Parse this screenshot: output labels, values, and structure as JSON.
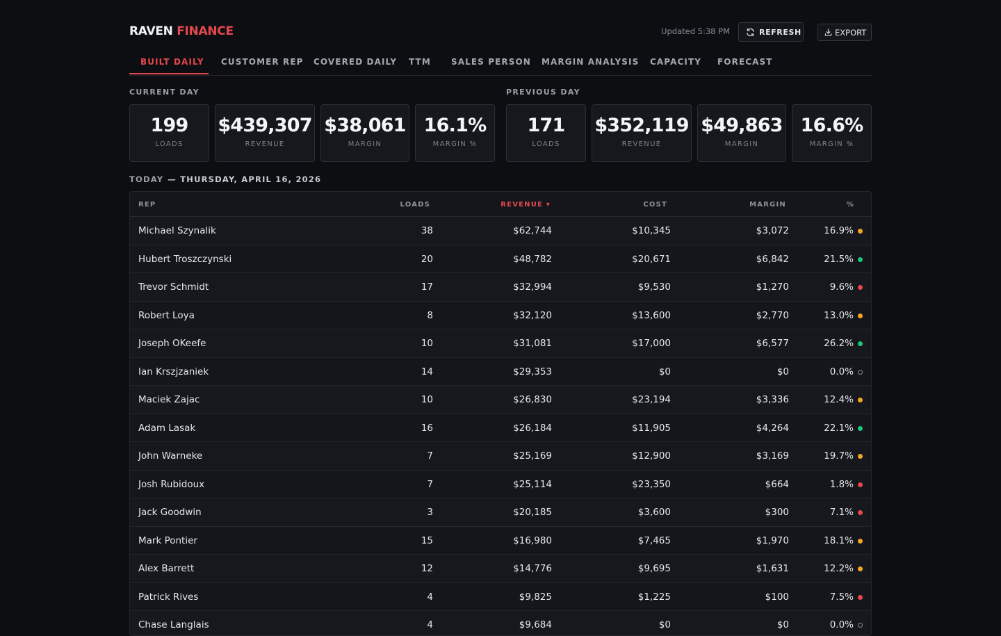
{
  "brand": {
    "part1": "RAVEN",
    "part2": "FINANCE"
  },
  "header": {
    "updated": "Updated 5:38 PM",
    "refresh_label": "REFRESH",
    "export_label": "EXPORT"
  },
  "tabs": [
    {
      "label": "BUILT DAILY",
      "active": true
    },
    {
      "label": "CUSTOMER REP",
      "active": false
    },
    {
      "label": "COVERED DAILY",
      "active": false
    },
    {
      "label": "TTM",
      "active": false
    },
    {
      "label": "SALES PERSON",
      "active": false
    },
    {
      "label": "MARGIN ANALYSIS",
      "active": false
    },
    {
      "label": "CAPACITY",
      "active": false
    },
    {
      "label": "FORECAST",
      "active": false
    }
  ],
  "current_day": {
    "label": "CURRENT DAY",
    "cards": [
      {
        "value": "199",
        "label": "LOADS"
      },
      {
        "value": "$439,307",
        "label": "REVENUE"
      },
      {
        "value": "$38,061",
        "label": "MARGIN"
      },
      {
        "value": "16.1%",
        "label": "MARGIN %"
      }
    ]
  },
  "previous_day": {
    "label": "PREVIOUS DAY",
    "cards": [
      {
        "value": "171",
        "label": "LOADS"
      },
      {
        "value": "$352,119",
        "label": "REVENUE"
      },
      {
        "value": "$49,863",
        "label": "MARGIN"
      },
      {
        "value": "16.6%",
        "label": "MARGIN %"
      }
    ]
  },
  "today": {
    "label": "TODAY",
    "date": "— THURSDAY, APRIL 16, 2026"
  },
  "table": {
    "columns": {
      "rep": "REP",
      "loads": "LOADS",
      "revenue": "REVENUE ▾",
      "cost": "COST",
      "margin": "MARGIN",
      "pct": "%"
    },
    "rows": [
      {
        "rep": "Michael Szynalik",
        "loads": "38",
        "revenue": "$62,744",
        "cost": "$10,345",
        "margin": "$3,072",
        "pct": "16.9%",
        "status": "amber"
      },
      {
        "rep": "Hubert Troszczynski",
        "loads": "20",
        "revenue": "$48,782",
        "cost": "$20,671",
        "margin": "$6,842",
        "pct": "21.5%",
        "status": "green"
      },
      {
        "rep": "Trevor Schmidt",
        "loads": "17",
        "revenue": "$32,994",
        "cost": "$9,530",
        "margin": "$1,270",
        "pct": "9.6%",
        "status": "red"
      },
      {
        "rep": "Robert Loya",
        "loads": "8",
        "revenue": "$32,120",
        "cost": "$13,600",
        "margin": "$2,770",
        "pct": "13.0%",
        "status": "amber"
      },
      {
        "rep": "Joseph OKeefe",
        "loads": "10",
        "revenue": "$31,081",
        "cost": "$17,000",
        "margin": "$6,577",
        "pct": "26.2%",
        "status": "green"
      },
      {
        "rep": "Ian Krszjzaniek",
        "loads": "14",
        "revenue": "$29,353",
        "cost": "$0",
        "margin": "$0",
        "pct": "0.0%",
        "status": "hollow"
      },
      {
        "rep": "Maciek Zajac",
        "loads": "10",
        "revenue": "$26,830",
        "cost": "$23,194",
        "margin": "$3,336",
        "pct": "12.4%",
        "status": "amber"
      },
      {
        "rep": "Adam Lasak",
        "loads": "16",
        "revenue": "$26,184",
        "cost": "$11,905",
        "margin": "$4,264",
        "pct": "22.1%",
        "status": "green"
      },
      {
        "rep": "John Warneke",
        "loads": "7",
        "revenue": "$25,169",
        "cost": "$12,900",
        "margin": "$3,169",
        "pct": "19.7%",
        "status": "amber"
      },
      {
        "rep": "Josh Rubidoux",
        "loads": "7",
        "revenue": "$25,114",
        "cost": "$23,350",
        "margin": "$664",
        "pct": "1.8%",
        "status": "red"
      },
      {
        "rep": "Jack Goodwin",
        "loads": "3",
        "revenue": "$20,185",
        "cost": "$3,600",
        "margin": "$300",
        "pct": "7.1%",
        "status": "red"
      },
      {
        "rep": "Mark Pontier",
        "loads": "15",
        "revenue": "$16,980",
        "cost": "$7,465",
        "margin": "$1,970",
        "pct": "18.1%",
        "status": "amber"
      },
      {
        "rep": "Alex Barrett",
        "loads": "12",
        "revenue": "$14,776",
        "cost": "$9,695",
        "margin": "$1,631",
        "pct": "12.2%",
        "status": "amber"
      },
      {
        "rep": "Patrick Rives",
        "loads": "4",
        "revenue": "$9,825",
        "cost": "$1,225",
        "margin": "$100",
        "pct": "7.5%",
        "status": "red"
      },
      {
        "rep": "Chase Langlais",
        "loads": "4",
        "revenue": "$9,684",
        "cost": "$0",
        "margin": "$0",
        "pct": "0.0%",
        "status": "hollow"
      }
    ]
  }
}
